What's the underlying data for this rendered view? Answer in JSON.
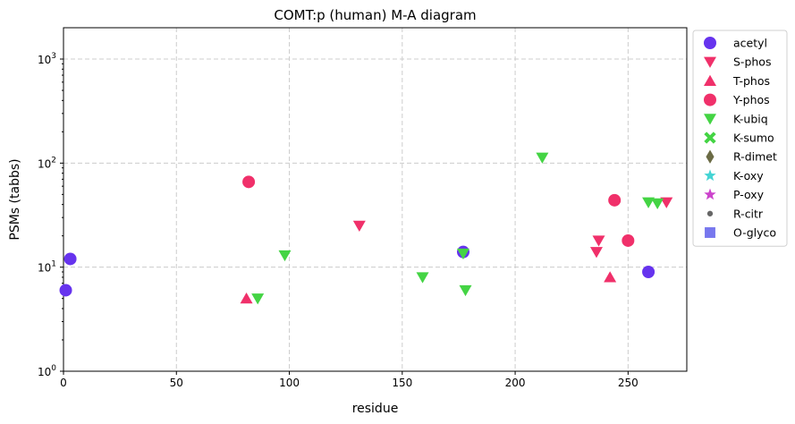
{
  "chart_data": {
    "type": "scatter",
    "title": "COMT:p (human) M-A diagram",
    "xlabel": "residue",
    "ylabel": "PSMs (tabbs)",
    "xlim": [
      0,
      276
    ],
    "ylim": [
      1,
      2000
    ],
    "yscale": "log",
    "xticks": [
      0,
      50,
      100,
      150,
      200,
      250
    ],
    "yticks": [
      1,
      10,
      100,
      1000
    ],
    "ytick_labels": [
      {
        "base": "10",
        "exp": "0"
      },
      {
        "base": "10",
        "exp": "1"
      },
      {
        "base": "10",
        "exp": "2"
      },
      {
        "base": "10",
        "exp": "3"
      }
    ],
    "grid": true,
    "legend_position": "outside-right",
    "series": [
      {
        "name": "acetyl",
        "marker": "circle",
        "color": "#6633ee",
        "points": [
          [
            1,
            6
          ],
          [
            3,
            12
          ],
          [
            177,
            14
          ],
          [
            259,
            9
          ]
        ]
      },
      {
        "name": "S-phos",
        "marker": "triangle-down",
        "color": "#f0306a",
        "points": [
          [
            131,
            25
          ],
          [
            236,
            14
          ],
          [
            237,
            18
          ],
          [
            267,
            42
          ]
        ]
      },
      {
        "name": "T-phos",
        "marker": "triangle-up",
        "color": "#f0306a",
        "points": [
          [
            81,
            5
          ],
          [
            242,
            8
          ]
        ]
      },
      {
        "name": "Y-phos",
        "marker": "circle",
        "color": "#f0306a",
        "points": [
          [
            82,
            66
          ],
          [
            244,
            44
          ],
          [
            250,
            18
          ]
        ]
      },
      {
        "name": "K-ubiq",
        "marker": "triangle-down",
        "color": "#44d444",
        "points": [
          [
            86,
            5
          ],
          [
            98,
            13
          ],
          [
            159,
            8
          ],
          [
            177,
            13.5
          ],
          [
            178,
            6
          ],
          [
            212,
            113
          ],
          [
            259,
            42
          ],
          [
            263,
            41
          ]
        ]
      },
      {
        "name": "K-sumo",
        "marker": "x",
        "color": "#44d444",
        "points": []
      },
      {
        "name": "R-dimet",
        "marker": "diamond",
        "color": "#6b6b45",
        "points": []
      },
      {
        "name": "K-oxy",
        "marker": "star",
        "color": "#44d4d4",
        "points": []
      },
      {
        "name": "P-oxy",
        "marker": "star",
        "color": "#cc44cc",
        "points": []
      },
      {
        "name": "R-citr",
        "marker": "dot",
        "color": "#666666",
        "points": []
      },
      {
        "name": "O-glyco",
        "marker": "square",
        "color": "#7777ee",
        "points": []
      }
    ]
  }
}
